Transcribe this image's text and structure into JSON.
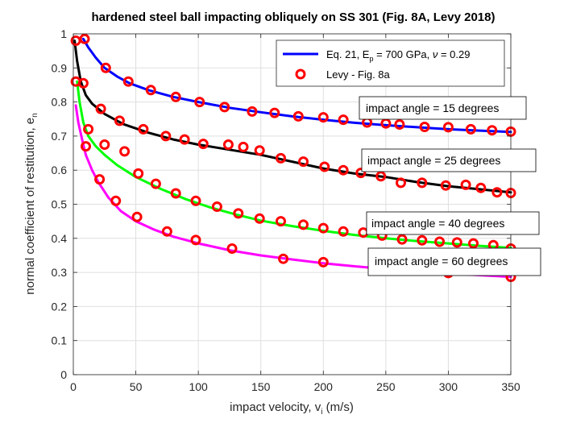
{
  "chart_data": {
    "type": "line",
    "title": "hardened steel ball impacting obliquely on SS 301 (Fig. 8A, Levy 2018)",
    "xlabel": "impact velocity, v",
    "xlabel_sub": "i",
    "xlabel_suffix": " (m/s)",
    "ylabel": "normal coefficient of restitution, e",
    "ylabel_sub": "n",
    "xlim": [
      0,
      350
    ],
    "ylim": [
      0,
      1
    ],
    "xticks": [
      0,
      50,
      100,
      150,
      200,
      250,
      300,
      350
    ],
    "yticks": [
      0,
      0.1,
      0.2,
      0.3,
      0.4,
      0.5,
      0.6,
      0.7,
      0.8,
      0.9,
      1
    ],
    "grid": true,
    "legend": {
      "placement": "top-right",
      "line_entry": {
        "prefix": "Eq. 21, E",
        "sub": "p",
        "suffix": " = 700 GPa, ",
        "nu": "ν",
        "nu_suffix": " = 0.29"
      },
      "marker_entry": "Levy - Fig. 8a"
    },
    "marker_color": "#ff0000",
    "annotations": [
      {
        "text": "impact angle = 15 degrees"
      },
      {
        "text": "impact angle = 25 degrees"
      },
      {
        "text": "impact angle = 40 degrees"
      },
      {
        "text": "impact angle = 60 degrees"
      }
    ],
    "curves": [
      {
        "color": "#0000ff",
        "points": [
          [
            8,
            0.985
          ],
          [
            12,
            0.96
          ],
          [
            18,
            0.93
          ],
          [
            25,
            0.9
          ],
          [
            35,
            0.875
          ],
          [
            45,
            0.855
          ],
          [
            60,
            0.835
          ],
          [
            80,
            0.815
          ],
          [
            100,
            0.8
          ],
          [
            125,
            0.783
          ],
          [
            150,
            0.77
          ],
          [
            175,
            0.758
          ],
          [
            200,
            0.748
          ],
          [
            225,
            0.739
          ],
          [
            250,
            0.732
          ],
          [
            275,
            0.726
          ],
          [
            300,
            0.72
          ],
          [
            325,
            0.716
          ],
          [
            350,
            0.712
          ]
        ]
      },
      {
        "color": "#000000",
        "points": [
          [
            1,
            0.98
          ],
          [
            3,
            0.92
          ],
          [
            6,
            0.86
          ],
          [
            10,
            0.82
          ],
          [
            15,
            0.795
          ],
          [
            25,
            0.765
          ],
          [
            40,
            0.735
          ],
          [
            60,
            0.71
          ],
          [
            80,
            0.69
          ],
          [
            100,
            0.675
          ],
          [
            125,
            0.66
          ],
          [
            150,
            0.645
          ],
          [
            175,
            0.625
          ],
          [
            200,
            0.605
          ],
          [
            225,
            0.59
          ],
          [
            250,
            0.58
          ],
          [
            275,
            0.565
          ],
          [
            300,
            0.553
          ],
          [
            325,
            0.544
          ],
          [
            350,
            0.535
          ]
        ]
      },
      {
        "color": "#00ff00",
        "points": [
          [
            3,
            0.86
          ],
          [
            5,
            0.8
          ],
          [
            8,
            0.74
          ],
          [
            12,
            0.7
          ],
          [
            18,
            0.67
          ],
          [
            25,
            0.645
          ],
          [
            35,
            0.615
          ],
          [
            50,
            0.58
          ],
          [
            70,
            0.545
          ],
          [
            90,
            0.515
          ],
          [
            110,
            0.49
          ],
          [
            130,
            0.47
          ],
          [
            150,
            0.452
          ],
          [
            175,
            0.436
          ],
          [
            200,
            0.422
          ],
          [
            225,
            0.41
          ],
          [
            250,
            0.4
          ],
          [
            275,
            0.392
          ],
          [
            300,
            0.385
          ],
          [
            325,
            0.378
          ],
          [
            350,
            0.372
          ]
        ]
      },
      {
        "color": "#ff00ff",
        "points": [
          [
            2,
            0.79
          ],
          [
            4,
            0.74
          ],
          [
            7,
            0.69
          ],
          [
            10,
            0.645
          ],
          [
            15,
            0.6
          ],
          [
            20,
            0.565
          ],
          [
            28,
            0.52
          ],
          [
            38,
            0.48
          ],
          [
            50,
            0.45
          ],
          [
            65,
            0.425
          ],
          [
            80,
            0.405
          ],
          [
            100,
            0.385
          ],
          [
            125,
            0.365
          ],
          [
            150,
            0.35
          ],
          [
            175,
            0.338
          ],
          [
            200,
            0.327
          ],
          [
            225,
            0.318
          ],
          [
            250,
            0.31
          ],
          [
            275,
            0.303
          ],
          [
            300,
            0.297
          ],
          [
            325,
            0.292
          ],
          [
            350,
            0.287
          ]
        ]
      }
    ],
    "markers": [
      [
        2,
        0.98
      ],
      [
        9,
        0.985
      ],
      [
        26,
        0.9
      ],
      [
        44,
        0.86
      ],
      [
        62,
        0.835
      ],
      [
        82,
        0.815
      ],
      [
        101,
        0.8
      ],
      [
        121,
        0.785
      ],
      [
        143,
        0.772
      ],
      [
        161,
        0.768
      ],
      [
        180,
        0.758
      ],
      [
        200,
        0.755
      ],
      [
        216,
        0.748
      ],
      [
        235,
        0.74
      ],
      [
        250,
        0.737
      ],
      [
        261,
        0.734
      ],
      [
        281,
        0.727
      ],
      [
        300,
        0.726
      ],
      [
        318,
        0.72
      ],
      [
        335,
        0.717
      ],
      [
        350,
        0.713
      ],
      [
        2,
        0.86
      ],
      [
        8,
        0.855
      ],
      [
        12,
        0.72
      ],
      [
        22,
        0.78
      ],
      [
        37,
        0.745
      ],
      [
        56,
        0.72
      ],
      [
        74,
        0.7
      ],
      [
        89,
        0.69
      ],
      [
        104,
        0.677
      ],
      [
        124,
        0.675
      ],
      [
        136,
        0.668
      ],
      [
        149,
        0.658
      ],
      [
        166,
        0.635
      ],
      [
        184,
        0.625
      ],
      [
        201,
        0.61
      ],
      [
        216,
        0.6
      ],
      [
        230,
        0.592
      ],
      [
        246,
        0.582
      ],
      [
        262,
        0.563
      ],
      [
        279,
        0.563
      ],
      [
        298,
        0.555
      ],
      [
        314,
        0.557
      ],
      [
        326,
        0.548
      ],
      [
        339,
        0.535
      ],
      [
        350,
        0.533
      ],
      [
        10,
        0.67
      ],
      [
        25,
        0.675
      ],
      [
        41,
        0.655
      ],
      [
        52,
        0.59
      ],
      [
        66,
        0.56
      ],
      [
        82,
        0.532
      ],
      [
        98,
        0.51
      ],
      [
        115,
        0.493
      ],
      [
        132,
        0.473
      ],
      [
        149,
        0.458
      ],
      [
        166,
        0.45
      ],
      [
        184,
        0.44
      ],
      [
        200,
        0.43
      ],
      [
        216,
        0.42
      ],
      [
        232,
        0.417
      ],
      [
        247,
        0.408
      ],
      [
        263,
        0.397
      ],
      [
        279,
        0.394
      ],
      [
        293,
        0.39
      ],
      [
        307,
        0.388
      ],
      [
        320,
        0.385
      ],
      [
        336,
        0.38
      ],
      [
        350,
        0.37
      ],
      [
        21,
        0.573
      ],
      [
        34,
        0.51
      ],
      [
        51,
        0.463
      ],
      [
        75,
        0.42
      ],
      [
        98,
        0.395
      ],
      [
        127,
        0.37
      ],
      [
        168,
        0.34
      ],
      [
        200,
        0.33
      ],
      [
        252,
        0.308
      ],
      [
        300,
        0.298
      ],
      [
        350,
        0.287
      ]
    ]
  }
}
